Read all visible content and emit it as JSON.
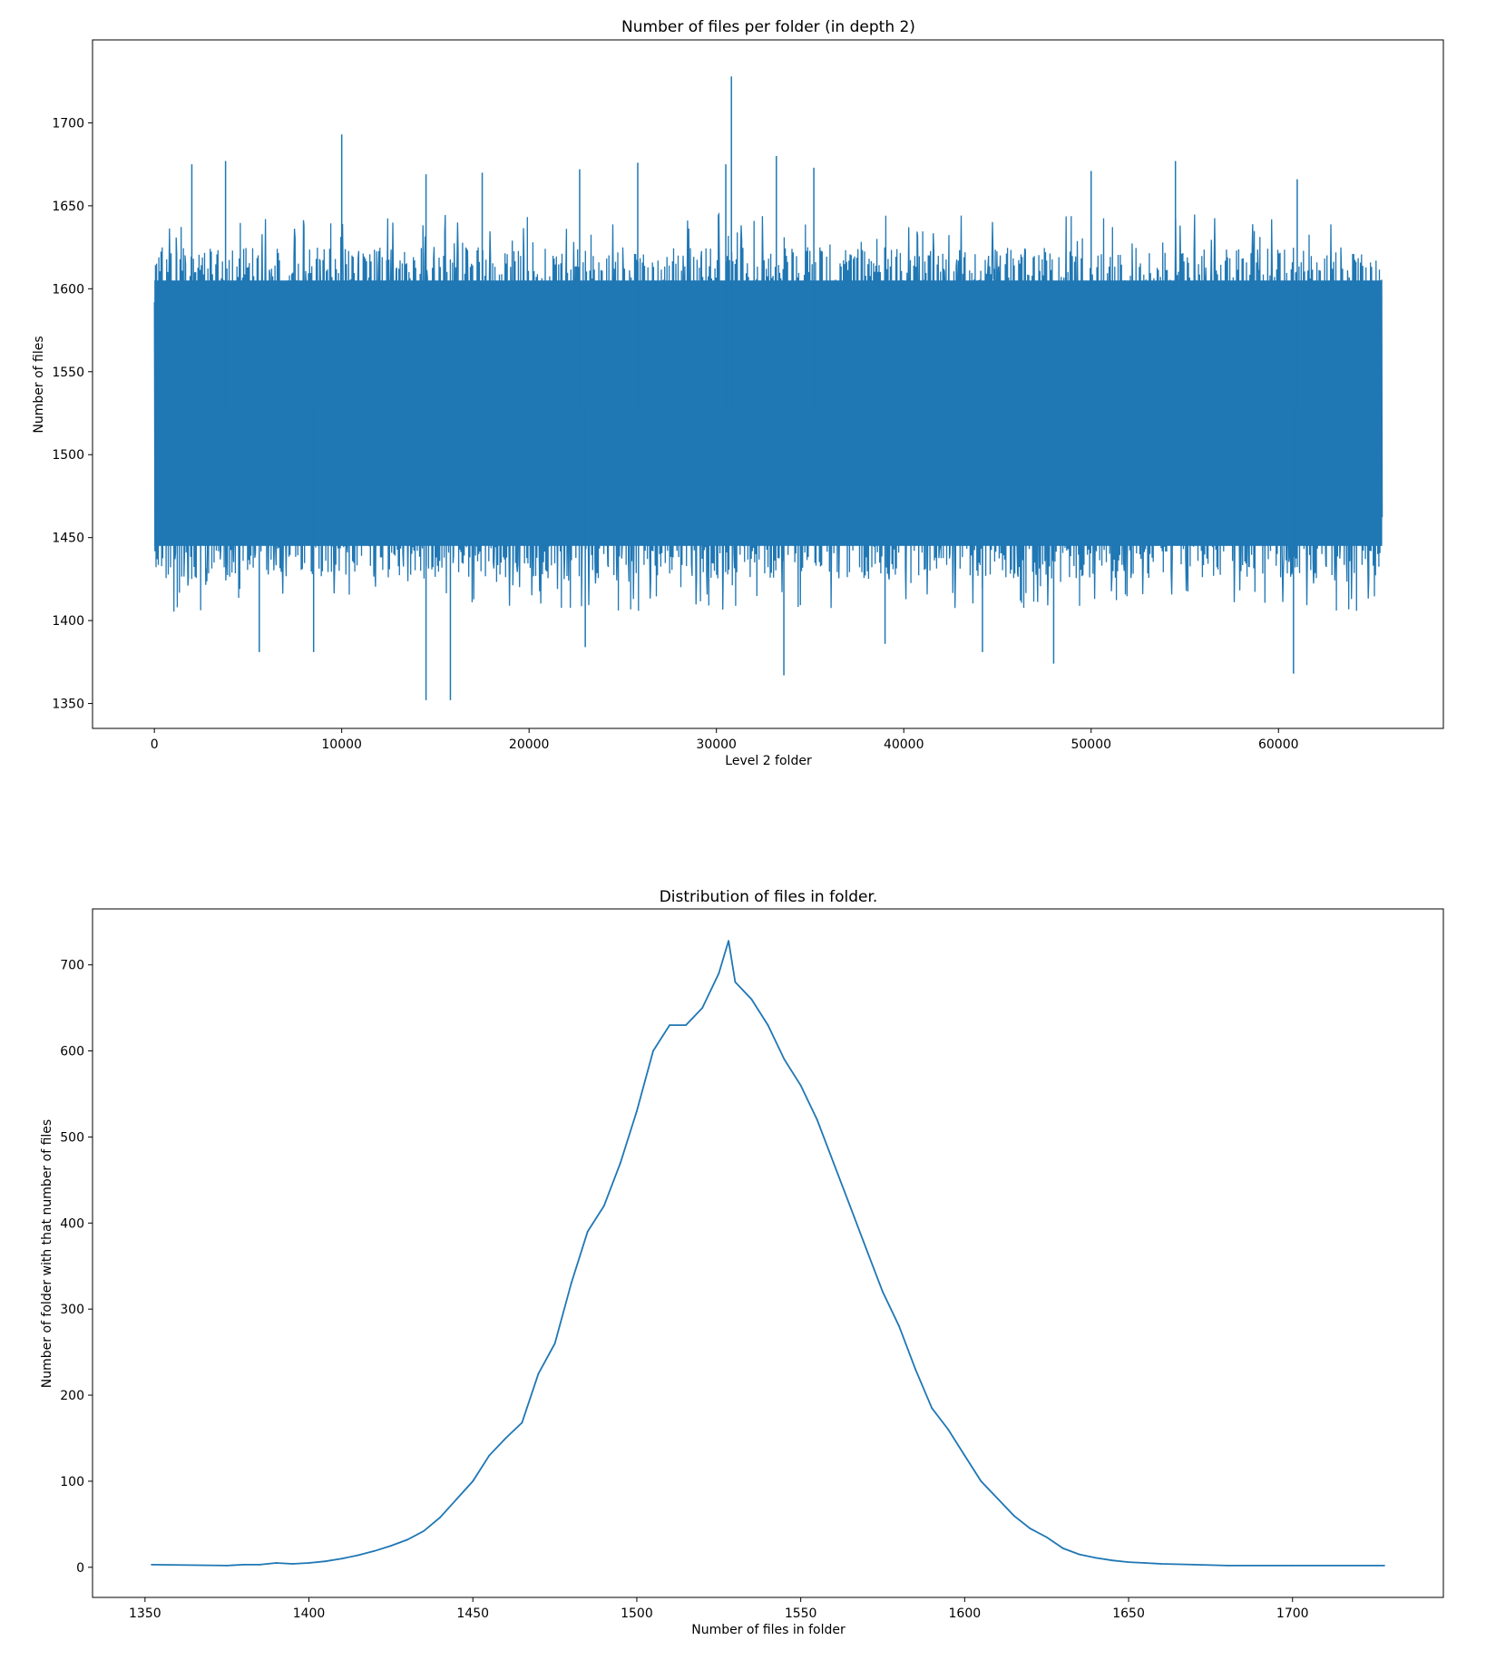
{
  "chart_data": [
    {
      "type": "line",
      "title": "Number of files per folder (in depth 2)",
      "xlabel": "Level 2 folder",
      "ylabel": "Number of files",
      "xlim": [
        -3300,
        68800
      ],
      "ylim": [
        1335,
        1750
      ],
      "xticks": [
        0,
        10000,
        20000,
        30000,
        40000,
        50000,
        60000
      ],
      "yticks": [
        1350,
        1400,
        1450,
        1500,
        1550,
        1600,
        1650,
        1700
      ],
      "grid": false,
      "series": [
        {
          "color": "#1f77b4",
          "n_points": 65536,
          "mean": 1528,
          "band_low": 1445,
          "band_high": 1605,
          "spikes_high": [
            {
              "x": 10000,
              "y": 1693
            },
            {
              "x": 3800,
              "y": 1677
            },
            {
              "x": 2000,
              "y": 1675
            },
            {
              "x": 17500,
              "y": 1670
            },
            {
              "x": 30500,
              "y": 1675
            },
            {
              "x": 30800,
              "y": 1728
            },
            {
              "x": 33200,
              "y": 1680
            },
            {
              "x": 35200,
              "y": 1673
            },
            {
              "x": 54500,
              "y": 1677
            },
            {
              "x": 50000,
              "y": 1671
            },
            {
              "x": 61000,
              "y": 1666
            },
            {
              "x": 22700,
              "y": 1672
            },
            {
              "x": 25800,
              "y": 1676
            },
            {
              "x": 14500,
              "y": 1669
            }
          ],
          "spikes_low": [
            {
              "x": 14500,
              "y": 1352
            },
            {
              "x": 15800,
              "y": 1352
            },
            {
              "x": 33600,
              "y": 1367
            },
            {
              "x": 48000,
              "y": 1374
            },
            {
              "x": 60800,
              "y": 1368
            },
            {
              "x": 5600,
              "y": 1381
            },
            {
              "x": 8500,
              "y": 1381
            },
            {
              "x": 44200,
              "y": 1381
            },
            {
              "x": 23000,
              "y": 1384
            },
            {
              "x": 39000,
              "y": 1386
            }
          ]
        }
      ]
    },
    {
      "type": "line",
      "title": "Distribution of files in folder.",
      "xlabel": "Number of files in folder",
      "ylabel": "Number of folder with that number of files",
      "xlim": [
        1334,
        1746
      ],
      "ylim": [
        -35,
        765
      ],
      "xticks": [
        1350,
        1400,
        1450,
        1500,
        1550,
        1600,
        1650,
        1700
      ],
      "yticks": [
        0,
        100,
        200,
        300,
        400,
        500,
        600,
        700
      ],
      "grid": false,
      "series": [
        {
          "color": "#1f77b4",
          "x": [
            1352,
            1375,
            1380,
            1385,
            1390,
            1395,
            1400,
            1405,
            1410,
            1415,
            1420,
            1425,
            1430,
            1435,
            1440,
            1445,
            1450,
            1455,
            1460,
            1465,
            1470,
            1475,
            1480,
            1485,
            1490,
            1495,
            1500,
            1505,
            1510,
            1515,
            1520,
            1525,
            1528,
            1530,
            1535,
            1540,
            1545,
            1550,
            1555,
            1560,
            1565,
            1570,
            1575,
            1580,
            1585,
            1590,
            1595,
            1600,
            1605,
            1610,
            1615,
            1620,
            1625,
            1630,
            1635,
            1640,
            1645,
            1650,
            1655,
            1660,
            1670,
            1680,
            1700,
            1728
          ],
          "y": [
            3,
            2,
            3,
            3,
            5,
            4,
            5,
            7,
            10,
            14,
            19,
            25,
            32,
            42,
            58,
            79,
            100,
            130,
            150,
            168,
            225,
            260,
            330,
            390,
            420,
            470,
            530,
            600,
            630,
            630,
            650,
            690,
            728,
            680,
            660,
            630,
            590,
            560,
            520,
            470,
            420,
            370,
            320,
            280,
            230,
            185,
            160,
            130,
            100,
            80,
            60,
            45,
            35,
            22,
            15,
            11,
            8,
            6,
            5,
            4,
            3,
            2,
            2,
            2
          ]
        }
      ]
    }
  ]
}
